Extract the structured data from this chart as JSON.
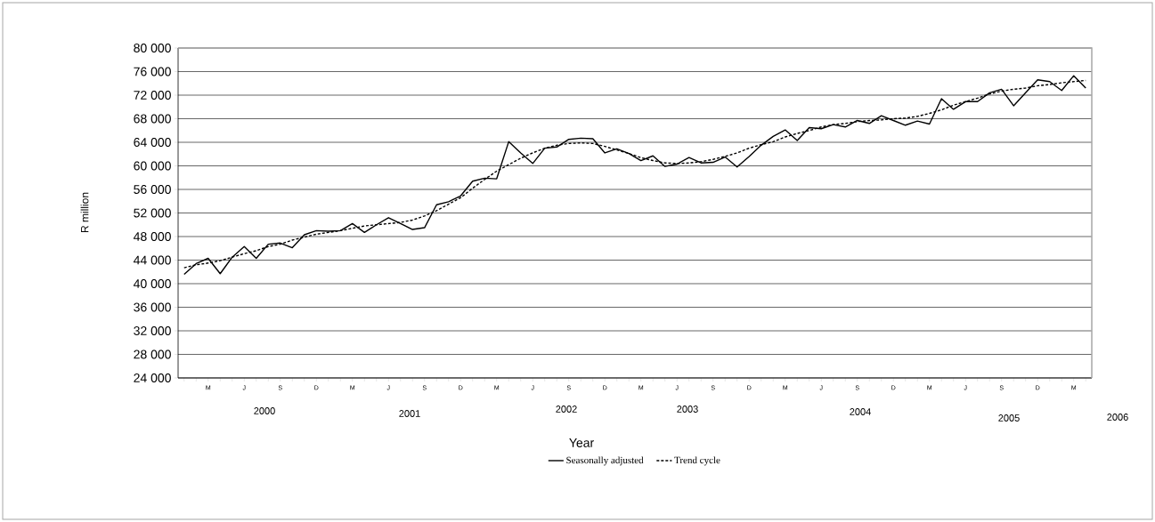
{
  "chart_data": {
    "type": "line",
    "xlabel": "Year",
    "ylabel": "R million",
    "categories": [
      null,
      null,
      "M",
      null,
      null,
      "J",
      null,
      null,
      "S",
      null,
      null,
      "D",
      null,
      null,
      "M",
      null,
      null,
      "J",
      null,
      null,
      "S",
      null,
      null,
      "D",
      null,
      null,
      "M",
      null,
      null,
      "J",
      null,
      null,
      "S",
      null,
      null,
      "D",
      null,
      null,
      "M",
      null,
      null,
      "J",
      null,
      null,
      "S",
      null,
      null,
      "D",
      null,
      null,
      "M",
      null,
      null,
      "J",
      null,
      null,
      "S",
      null,
      null,
      "D",
      null,
      null,
      "M",
      null,
      null,
      "J",
      null,
      null,
      "S",
      null,
      null,
      "D",
      null,
      null,
      "M",
      null
    ],
    "series": [
      {
        "name": "Seasonally adjusted",
        "color": "#000000",
        "line_style": "solid",
        "values": [
          41600,
          43400,
          44300,
          41700,
          44500,
          46300,
          44300,
          46700,
          46900,
          46100,
          48300,
          49000,
          48900,
          49000,
          50200,
          48700,
          50000,
          51200,
          50200,
          49200,
          49500,
          53400,
          53900,
          54900,
          57400,
          57900,
          57800,
          64100,
          62200,
          60400,
          63000,
          63200,
          64500,
          64700,
          64600,
          62200,
          62900,
          62100,
          60900,
          61700,
          59900,
          60300,
          61400,
          60500,
          60600,
          61500,
          59800,
          61600,
          63500,
          65000,
          66100,
          64300,
          66500,
          66300,
          67000,
          66600,
          67700,
          67200,
          68500,
          67700,
          66900,
          67600,
          67100,
          71400,
          69600,
          70900,
          70900,
          72400,
          73000,
          70200,
          72400,
          74600,
          74300,
          72800,
          75300,
          73200
        ]
      },
      {
        "name": "Trend cycle",
        "color": "#000000",
        "line_style": "dashed",
        "values": [
          42700,
          43200,
          43500,
          43900,
          44500,
          45100,
          45600,
          46300,
          46700,
          47400,
          47900,
          48400,
          48700,
          49000,
          49400,
          49800,
          50000,
          50200,
          50400,
          50800,
          51500,
          52400,
          53500,
          54600,
          56200,
          57700,
          59100,
          60200,
          61300,
          62200,
          63000,
          63500,
          63800,
          63900,
          63800,
          63300,
          62700,
          62100,
          61400,
          60900,
          60500,
          60400,
          60500,
          60700,
          61100,
          61600,
          62200,
          63000,
          63600,
          64100,
          64900,
          65500,
          66000,
          66600,
          67000,
          67200,
          67500,
          67700,
          67800,
          68000,
          68100,
          68400,
          68900,
          69500,
          70300,
          70900,
          71500,
          72200,
          72700,
          73000,
          73200,
          73600,
          73800,
          74100,
          74300,
          74500
        ]
      }
    ],
    "ylim": [
      24000,
      80000
    ],
    "yticks": [
      {
        "value": 24000,
        "label": "24 000"
      },
      {
        "value": 28000,
        "label": "28 000"
      },
      {
        "value": 32000,
        "label": "32 000"
      },
      {
        "value": 36000,
        "label": "36 000"
      },
      {
        "value": 40000,
        "label": "40 000"
      },
      {
        "value": 44000,
        "label": "44 000"
      },
      {
        "value": 48000,
        "label": "48 000"
      },
      {
        "value": 52000,
        "label": "52 000"
      },
      {
        "value": 56000,
        "label": "56 000"
      },
      {
        "value": 60000,
        "label": "60 000"
      },
      {
        "value": 64000,
        "label": "64 000"
      },
      {
        "value": 68000,
        "label": "68 000"
      },
      {
        "value": 72000,
        "label": "72 000"
      },
      {
        "value": 76000,
        "label": "76 000"
      },
      {
        "value": 80000,
        "label": "80 000"
      }
    ],
    "grid": "y",
    "legend": "bottom",
    "marker": "none",
    "annotations": [
      "2000",
      "2001",
      "2002",
      "2003",
      "2004",
      "2005",
      "2006"
    ]
  }
}
